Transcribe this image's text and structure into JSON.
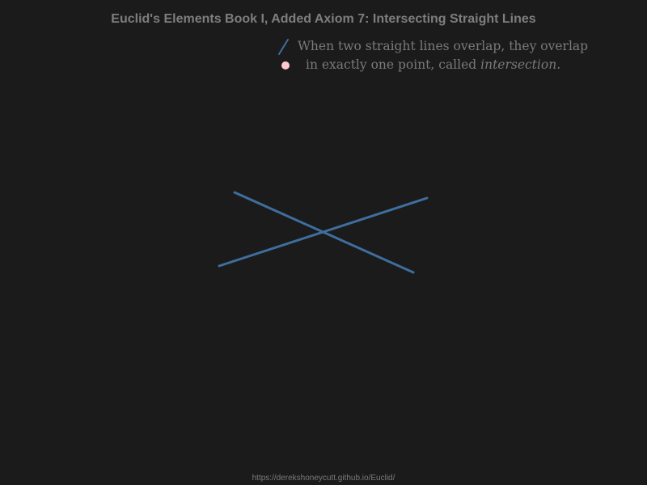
{
  "title": "Euclid's Elements Book I, Added Axiom 7: Intersecting Straight Lines",
  "legend": {
    "line1": "When two straight lines overlap, they overlap",
    "line2_prefix": "in exactly one point, called ",
    "line2_term": "intersection",
    "line2_suffix": ".",
    "line_icon": "line-segment-icon",
    "point_icon": "point-icon"
  },
  "colors": {
    "background": "#1b1b1b",
    "line": "#3f6e9e",
    "point": "#ffc8d0",
    "text": "#7a7a7a"
  },
  "footer": {
    "url": "https://derekshoneycutt.github.io/Euclid/"
  }
}
